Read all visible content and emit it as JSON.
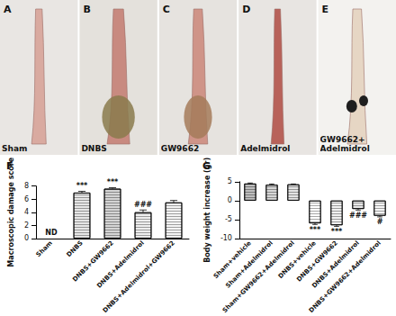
{
  "photos": [
    {
      "panel": "A",
      "label": "Sham"
    },
    {
      "panel": "B",
      "label": "DNBS"
    },
    {
      "panel": "C",
      "label": "GW9662"
    },
    {
      "panel": "D",
      "label": "Adelmidrol"
    },
    {
      "panel": "E",
      "label": "GW9662+ Adelmidrol"
    }
  ],
  "chart_data": [
    {
      "type": "bar",
      "panel": "F",
      "y_label": "Macroscopic damage score",
      "categories": [
        "Sham",
        "DNBS",
        "DNBS+GW9662",
        "DNBS+Adelmidrol",
        "DNBS+Adelmidrol+GW9662"
      ],
      "values": [
        null,
        7,
        7.6,
        4,
        5.5
      ],
      "errors": [
        null,
        0.2,
        0.15,
        0.35,
        0.3
      ],
      "annotations": [
        "ND",
        "***",
        "***",
        "###",
        null
      ],
      "colors": [
        "#ffffff",
        "#e6e6e6",
        "#d4d4d4",
        "#eeeeee",
        "#f4f4f4"
      ],
      "ylim": [
        0,
        8
      ],
      "yticks": [
        0,
        2,
        4,
        6,
        8
      ]
    },
    {
      "type": "bar",
      "panel": "G",
      "y_label": "Body weight increase (gr)",
      "categories": [
        "Sham+vehicle",
        "Sham+Adelmidrol",
        "Sham+GW9662+Adelmidrol",
        "DNBS+vehicle",
        "DNBS+GW9662",
        "DNBS+Adelmidrol",
        "DNBS+GW9662+Adelmidrol"
      ],
      "values": [
        4.5,
        4.2,
        4.3,
        -6,
        -6.5,
        -2.2,
        -4
      ],
      "errors": [
        0.15,
        0.2,
        0.1,
        0.3,
        0.3,
        0.3,
        0.3
      ],
      "annotations": [
        null,
        null,
        null,
        "***",
        "***",
        "###",
        "#"
      ],
      "colors": [
        "#bdbdbd",
        "#d6d6d6",
        "#e4e4e4",
        "#ffffff",
        "#f0f0f0",
        "#e8e8e8",
        "#f6f6f6"
      ],
      "ylim": [
        -10,
        5
      ],
      "yticks": [
        -10,
        -5,
        0,
        5
      ]
    }
  ]
}
